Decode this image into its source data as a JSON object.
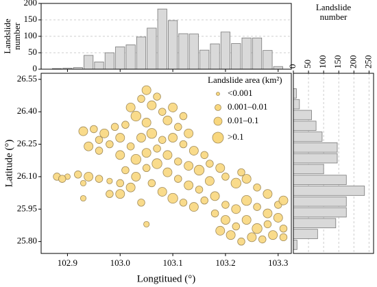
{
  "chart_data": [
    {
      "type": "scatter",
      "xlabel": "Longtitued (°)",
      "ylabel": "Latitude (°)",
      "xlim": [
        102.85,
        103.325
      ],
      "ylim": [
        25.745,
        26.578
      ],
      "xticks": [
        102.9,
        {
          "value": 103,
          "label": "103.0"
        },
        103.1,
        103.2,
        103.3
      ],
      "yticks": [
        26.55,
        {
          "value": 26.4,
          "label": "26.40"
        },
        26.25,
        {
          "value": 26.1,
          "label": "26.10"
        },
        25.95,
        {
          "value": 25.8,
          "label": "25.80"
        }
      ],
      "color": "#f8d77e",
      "edge": "#a08a58",
      "legend_title": "Landslide area (km²)",
      "legend_labels": [
        "<0.001",
        "0.001–0.01",
        "0.01–0.1",
        ">0.1"
      ],
      "x": [
        102.88,
        102.9,
        102.92,
        102.94,
        102.96,
        102.98,
        103.0,
        102.93,
        102.89,
        102.93,
        102.95,
        102.97,
        102.96,
        102.94,
        102.96,
        102.98,
        103.0,
        102.99,
        103.02,
        103.04,
        103.05,
        103.07,
        103.06,
        103.03,
        103.08,
        103.1,
        103.12,
        103.05,
        103.01,
        103.09,
        103.11,
        103.13,
        103.0,
        103.02,
        103.04,
        103.06,
        103.08,
        103.1,
        103.12,
        103.14,
        103.16,
        103.03,
        103.05,
        103.07,
        103.09,
        103.11,
        103.13,
        103.15,
        103.17,
        103.19,
        103.01,
        103.03,
        103.05,
        103.07,
        103.09,
        103.11,
        103.13,
        103.15,
        103.17,
        103.2,
        103.22,
        103.24,
        103.26,
        103.28,
        103.23,
        103.02,
        103.06,
        103.08,
        103.1,
        103.12,
        103.14,
        103.16,
        103.18,
        103.2,
        103.22,
        103.24,
        103.26,
        103.28,
        103.3,
        103.31,
        103.18,
        103.2,
        103.22,
        103.24,
        103.26,
        103.28,
        103.3,
        103.31,
        103.21,
        103.23,
        103.25,
        103.27,
        103.29,
        103.31,
        103.19,
        103.04,
        103.0,
        102.98,
        102.93,
        103.05
      ],
      "y": [
        26.1,
        26.1,
        26.11,
        26.1,
        26.09,
        26.08,
        26.07,
        26.07,
        26.09,
        26.31,
        26.32,
        26.3,
        26.27,
        26.24,
        26.22,
        26.25,
        26.28,
        26.33,
        26.42,
        26.46,
        26.5,
        26.47,
        26.43,
        26.38,
        26.4,
        26.42,
        26.38,
        26.35,
        26.34,
        26.36,
        26.33,
        26.3,
        26.2,
        26.24,
        26.28,
        26.3,
        26.27,
        26.28,
        26.25,
        26.22,
        26.2,
        26.18,
        26.21,
        26.23,
        26.2,
        26.17,
        26.15,
        26.13,
        26.16,
        26.14,
        26.13,
        26.1,
        26.14,
        26.16,
        26.12,
        26.09,
        26.06,
        26.04,
        26.08,
        26.1,
        26.07,
        26.09,
        26.05,
        26.02,
        26.12,
        26.05,
        26.07,
        26.03,
        26.0,
        25.98,
        25.96,
        25.99,
        26.01,
        25.97,
        25.95,
        25.99,
        25.96,
        25.93,
        25.97,
        25.99,
        25.93,
        25.9,
        25.87,
        25.9,
        25.86,
        25.88,
        25.91,
        25.86,
        25.83,
        25.8,
        25.82,
        25.81,
        25.83,
        25.82,
        25.85,
        25.98,
        26.02,
        26.02,
        26.0,
        25.88
      ],
      "area": [
        0.005,
        0.0005,
        0.005,
        0.05,
        0.005,
        0.0005,
        0.005,
        0.0005,
        0.005,
        0.05,
        0.005,
        0.05,
        0.005,
        0.05,
        0.005,
        0.005,
        0.05,
        0.005,
        0.05,
        0.005,
        0.05,
        0.005,
        0.05,
        0.2,
        0.005,
        0.05,
        0.005,
        0.05,
        0.005,
        0.05,
        0.005,
        0.05,
        0.05,
        0.005,
        0.05,
        0.2,
        0.005,
        0.05,
        0.005,
        0.05,
        0.005,
        0.2,
        0.05,
        0.005,
        0.05,
        0.005,
        0.05,
        0.2,
        0.005,
        0.05,
        0.005,
        0.05,
        0.005,
        0.2,
        0.05,
        0.005,
        0.05,
        0.005,
        0.05,
        0.005,
        0.2,
        0.05,
        0.005,
        0.05,
        0.005,
        0.05,
        0.005,
        0.05,
        0.2,
        0.005,
        0.05,
        0.005,
        0.05,
        0.005,
        0.05,
        0.2,
        0.005,
        0.05,
        0.005,
        0.05,
        0.005,
        0.05,
        0.005,
        0.05,
        0.2,
        0.005,
        0.05,
        0.005,
        0.05,
        0.005,
        0.05,
        0.005,
        0.05,
        0.005,
        0.05,
        0.005,
        0.05,
        0.005,
        0.0005,
        0.0005
      ]
    },
    {
      "type": "histogram",
      "orientation": "vertical",
      "ylabel": [
        "Landslide",
        "number"
      ],
      "bins": [
        102.87,
        102.89,
        102.91,
        102.93,
        102.95,
        102.97,
        102.99,
        103.01,
        103.03,
        103.05,
        103.07,
        103.09,
        103.11,
        103.13,
        103.15,
        103.17,
        103.19,
        103.21,
        103.23,
        103.25,
        103.27,
        103.29,
        103.31
      ],
      "counts": [
        2,
        3,
        5,
        42,
        22,
        50,
        68,
        74,
        98,
        125,
        183,
        148,
        108,
        107,
        58,
        77,
        113,
        78,
        95,
        95,
        57,
        8
      ],
      "ylim": [
        0,
        200
      ],
      "yticks": [
        0,
        50,
        100,
        150,
        200
      ],
      "color": "#d9d9d9",
      "grid": true
    },
    {
      "type": "histogram",
      "orientation": "horizontal",
      "xlabel": [
        "Landslide",
        "number"
      ],
      "bins": [
        25.76,
        25.81,
        25.86,
        25.91,
        25.96,
        26.01,
        26.06,
        26.11,
        26.16,
        26.21,
        26.26,
        26.31,
        26.36,
        26.41,
        26.46,
        26.51
      ],
      "counts": [
        12,
        80,
        140,
        175,
        175,
        235,
        175,
        100,
        145,
        145,
        95,
        75,
        60,
        20,
        10
      ],
      "xlim": [
        0,
        265
      ],
      "xticks": [
        0,
        50,
        100,
        150,
        200,
        250
      ],
      "color": "#d9d9d9",
      "grid": true
    }
  ]
}
